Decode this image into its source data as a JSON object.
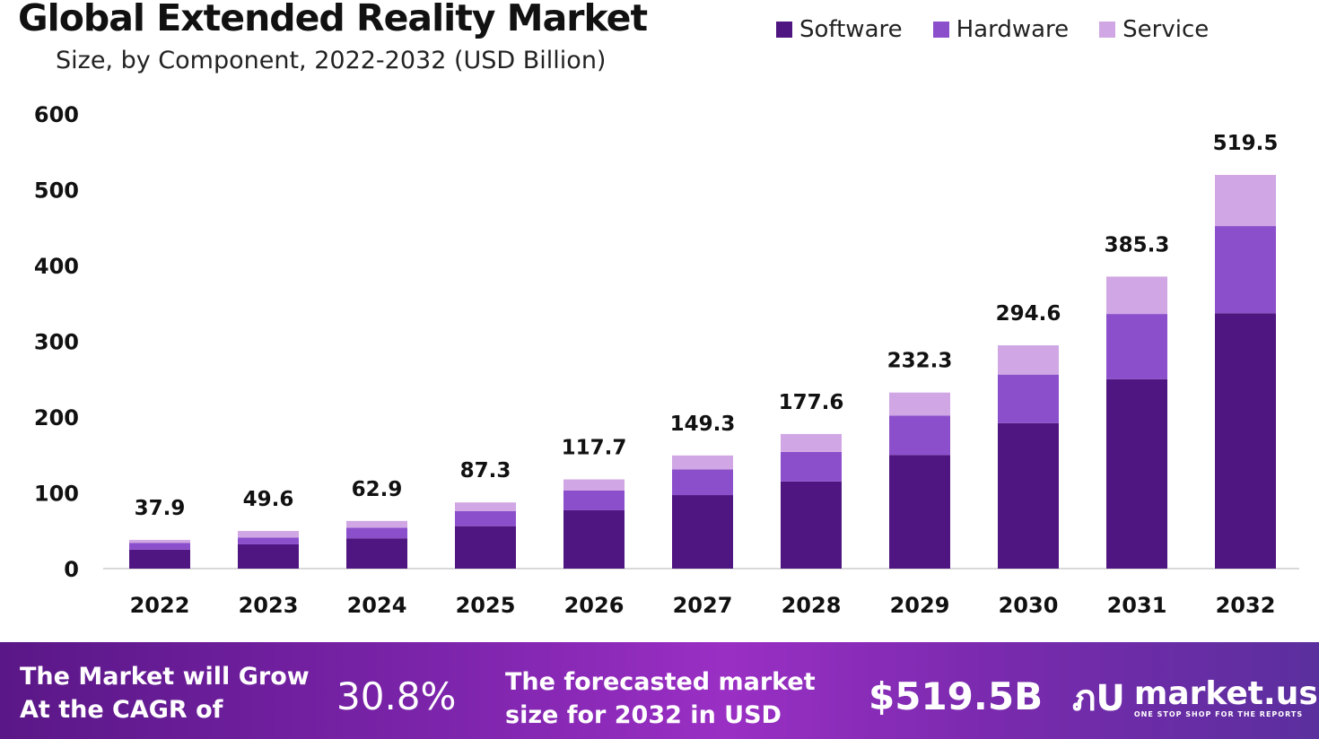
{
  "chart_data": {
    "type": "bar",
    "stacked": true,
    "title": "Global Extended Reality Market",
    "subtitle": "Size, by Component, 2022-2032 (USD Billion)",
    "xlabel": "",
    "ylabel": "",
    "ylim": [
      0,
      600
    ],
    "yticks": [
      "0",
      "100",
      "200",
      "300",
      "400",
      "500",
      "600"
    ],
    "grid": false,
    "legend_position": "top-right",
    "categories": [
      "2022",
      "2023",
      "2024",
      "2025",
      "2026",
      "2027",
      "2028",
      "2029",
      "2030",
      "2031",
      "2032"
    ],
    "series": [
      {
        "name": "Software",
        "color": "#4f1581",
        "values": [
          25,
          32,
          40,
          56,
          77,
          97,
          115,
          150,
          192,
          250,
          337
        ]
      },
      {
        "name": "Hardware",
        "color": "#8b4fcb",
        "values": [
          9,
          9,
          14,
          20,
          26,
          34,
          39,
          52,
          64,
          86,
          115
        ]
      },
      {
        "name": "Service",
        "color": "#d0a6e4",
        "values": [
          3.9,
          8.6,
          8.9,
          11.3,
          14.7,
          18.3,
          23.6,
          30.3,
          38.6,
          49.3,
          67.5
        ]
      }
    ],
    "totals": [
      "37.9",
      "49.6",
      "62.9",
      "87.3",
      "117.7",
      "149.3",
      "177.6",
      "232.3",
      "294.6",
      "385.3",
      "519.5"
    ]
  },
  "banner": {
    "cagr_text_1": "The Market will Grow",
    "cagr_text_2": "At the CAGR of",
    "cagr_value": "30.8%",
    "forecast_text_1": "The forecasted market",
    "forecast_text_2": "size for 2032 in USD",
    "forecast_value": "$519.5B",
    "logo_name": "market.us",
    "logo_tagline": "ONE STOP SHOP FOR THE REPORTS"
  }
}
